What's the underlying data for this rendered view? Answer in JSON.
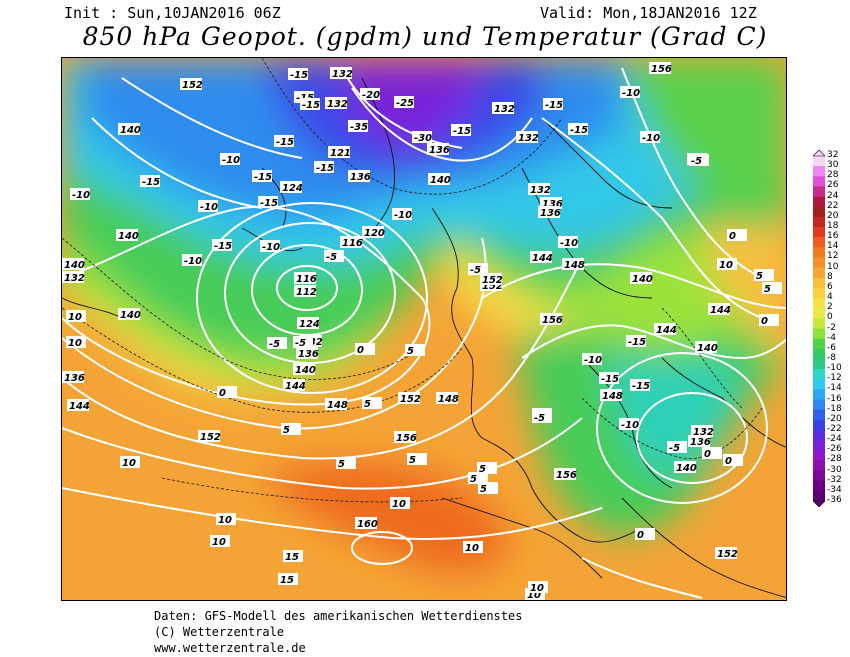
{
  "header": {
    "init": "Init : Sun,10JAN2016 06Z",
    "valid": "Valid: Mon,18JAN2016 12Z",
    "title": "850 hPa Geopot. (gpdm) und Temperatur (Grad C)"
  },
  "legend": {
    "unit": "Grad C",
    "ticks": [
      "32",
      "30",
      "28",
      "26",
      "24",
      "22",
      "20",
      "18",
      "16",
      "14",
      "12",
      "10",
      "8",
      "6",
      "4",
      "2",
      "0",
      "-2",
      "-4",
      "-6",
      "-8",
      "-10",
      "-12",
      "-14",
      "-16",
      "-18",
      "-20",
      "-22",
      "-24",
      "-26",
      "-28",
      "-30",
      "-32",
      "-34",
      "-36"
    ],
    "colors": [
      "#f7d3f7",
      "#ee88ee",
      "#e050d8",
      "#c62e8a",
      "#b01840",
      "#a02020",
      "#c02a20",
      "#dd3a20",
      "#ee5a20",
      "#f07a1e",
      "#f4902a",
      "#f6a632",
      "#f8be3e",
      "#f9d244",
      "#f8e048",
      "#e8ec44",
      "#c8e83c",
      "#8ee03a",
      "#54d24a",
      "#36c864",
      "#2ec888",
      "#2ed8c8",
      "#32c8ee",
      "#2ea8f0",
      "#2e88ee",
      "#3060ee",
      "#3a40e8",
      "#5a2ee0",
      "#7a20d8",
      "#8e18c8",
      "#8a10b0",
      "#7a0898",
      "#6a0080",
      "#5a0070"
    ]
  },
  "geopotential_labels": [
    "132",
    "120",
    "128",
    "132",
    "124",
    "121",
    "136",
    "132",
    "124",
    "120",
    "116",
    "116",
    "112",
    "124",
    "132",
    "136",
    "140",
    "144",
    "148",
    "152",
    "156",
    "160",
    "148",
    "152",
    "156",
    "144",
    "140",
    "136",
    "132",
    "128",
    "124",
    "140",
    "148",
    "152",
    "144",
    "132",
    "136",
    "140",
    "144",
    "152",
    "156",
    "148",
    "136",
    "140",
    "144",
    "132",
    "140"
  ],
  "temperature_labels": [
    "-15",
    "-20",
    "-25",
    "-30",
    "-35",
    "-30",
    "-15",
    "-10",
    "-15",
    "-15",
    "-10",
    "-15",
    "-10",
    "-15",
    "-10",
    "-15",
    "-5",
    "-10",
    "-5",
    "0",
    "-5",
    "0",
    "5",
    "0",
    "5",
    "10",
    "5",
    "10",
    "15",
    "15",
    "10",
    "10",
    "5",
    "-5",
    "-10",
    "-15",
    "-10",
    "-5",
    "0",
    "5",
    "10",
    "-10",
    "-15",
    "-10",
    "-5",
    "5",
    "10",
    "0",
    "10",
    "5",
    "-5",
    "-15",
    "-10"
  ],
  "footer": {
    "line1": "Daten: GFS-Modell des amerikanischen Wetterdienstes",
    "line2": "(C) Wetterzentrale",
    "line3": "www.wetterzentrale.de"
  }
}
